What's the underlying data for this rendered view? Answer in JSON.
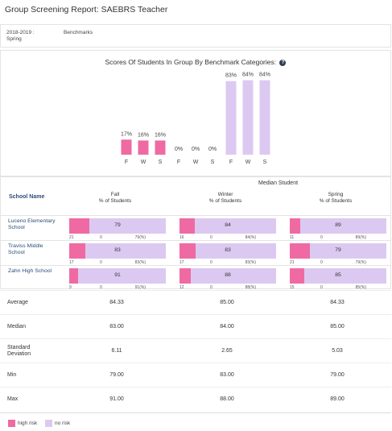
{
  "header": {
    "title": "Group Screening Report: SAEBRS Teacher"
  },
  "filters": {
    "year": "2018-2019 : Spring",
    "measure": "Benchmarks"
  },
  "chart_title": "Scores Of Students In Group By Benchmark Categories:",
  "help_glyph": "?",
  "colors": {
    "high_risk": "#ef6aa2",
    "some_risk": "#f3a6c8",
    "no_risk": "#dcc9f1"
  },
  "chart_data": {
    "type": "bar",
    "categories": [
      "F",
      "W",
      "S",
      "F",
      "W",
      "S",
      "F",
      "W",
      "S"
    ],
    "series": [
      {
        "values": [
          17,
          16,
          16,
          null,
          null,
          null,
          null,
          null,
          null
        ]
      },
      {
        "values": [
          null,
          null,
          null,
          0,
          0,
          0,
          null,
          null,
          null
        ]
      },
      {
        "values": [
          null,
          null,
          null,
          null,
          null,
          null,
          83,
          84,
          84
        ]
      }
    ],
    "data_labels": [
      "17%",
      "16%",
      "16%",
      "0%",
      "0%",
      "0%",
      "83%",
      "84%",
      "84%"
    ],
    "ylim": [
      0,
      100
    ]
  },
  "table": {
    "median_header": "Median Student",
    "school_header": "School Name",
    "seasons": [
      {
        "name": "Fall",
        "sub": "% of Students"
      },
      {
        "name": "Winter",
        "sub": "% of Students"
      },
      {
        "name": "Spring",
        "sub": "% of Students"
      }
    ],
    "rows": [
      {
        "school": "Luceno Elementary School",
        "cells": [
          {
            "risk_pct": 21,
            "value": "79",
            "lo": "21",
            "mid": "0",
            "hi": "79(%)"
          },
          {
            "risk_pct": 16,
            "value": "84",
            "lo": "16",
            "mid": "0",
            "hi": "84(%)"
          },
          {
            "risk_pct": 11,
            "value": "89",
            "lo": "11",
            "mid": "0",
            "hi": "89(%)"
          }
        ]
      },
      {
        "school": "Traviss Middle School",
        "cells": [
          {
            "risk_pct": 17,
            "value": "83",
            "lo": "17",
            "mid": "0",
            "hi": "83(%)"
          },
          {
            "risk_pct": 17,
            "value": "83",
            "lo": "17",
            "mid": "0",
            "hi": "83(%)"
          },
          {
            "risk_pct": 21,
            "value": "79",
            "lo": "21",
            "mid": "0",
            "hi": "79(%)"
          }
        ]
      },
      {
        "school": "Zahn High School",
        "cells": [
          {
            "risk_pct": 9,
            "value": "91",
            "lo": "9",
            "mid": "0",
            "hi": "91(%)"
          },
          {
            "risk_pct": 12,
            "value": "88",
            "lo": "12",
            "mid": "0",
            "hi": "88(%)"
          },
          {
            "risk_pct": 15,
            "value": "85",
            "lo": "15",
            "mid": "0",
            "hi": "85(%)"
          }
        ]
      }
    ]
  },
  "stats": [
    {
      "label": "Average",
      "values": [
        "84.33",
        "85.00",
        "84.33"
      ]
    },
    {
      "label": "Median",
      "values": [
        "83.00",
        "84.00",
        "85.00"
      ]
    },
    {
      "label": "Standard Deviation",
      "values": [
        "6.11",
        "2.65",
        "5.03"
      ]
    },
    {
      "label": "Min",
      "values": [
        "79.00",
        "83.00",
        "79.00"
      ]
    },
    {
      "label": "Max",
      "values": [
        "91.00",
        "88.00",
        "89.00"
      ]
    }
  ],
  "legend": {
    "high_risk": "high risk",
    "no_risk": "no risk"
  }
}
